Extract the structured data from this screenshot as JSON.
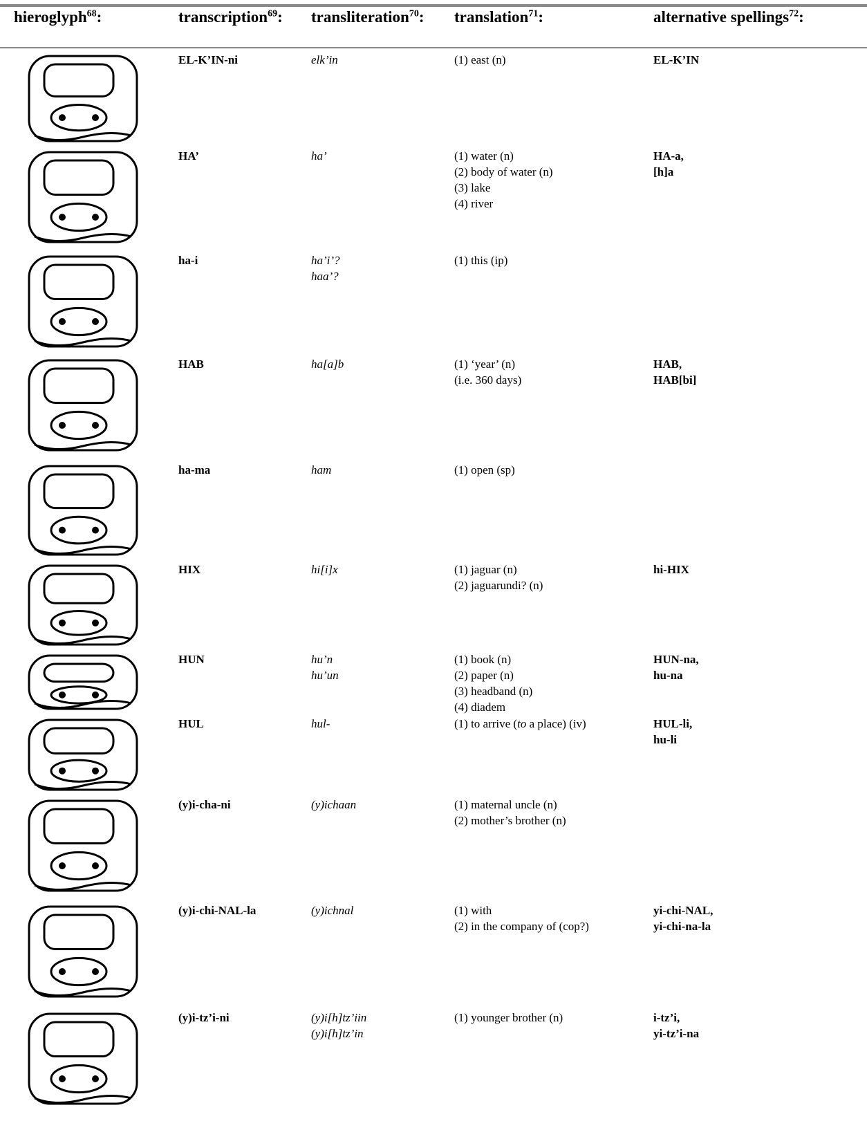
{
  "header": [
    {
      "label": "hieroglyph",
      "note": "68",
      "suffix": ":"
    },
    {
      "label": "transcription",
      "note": "69",
      "suffix": ":"
    },
    {
      "label": "transliteration",
      "note": "70",
      "suffix": ":"
    },
    {
      "label": "translation",
      "note": "71",
      "suffix": ":"
    },
    {
      "label": "alternative spellings",
      "note": "72",
      "suffix": ":"
    }
  ],
  "rows": [
    {
      "transcription": "EL-K’IN-ni",
      "transliteration": [
        "elk’in"
      ],
      "translation": [
        "(1) east (n)"
      ],
      "alternatives": [
        "EL-K’IN"
      ]
    },
    {
      "transcription": "HA’",
      "transliteration": [
        "ha’"
      ],
      "translation": [
        "(1) water (n)",
        "(2) body of water (n)",
        "(3) lake",
        "(4) river"
      ],
      "alternatives": [
        "HA-a,",
        "[h]a"
      ]
    },
    {
      "transcription": "ha-i",
      "transliteration": [
        "ha’i’?",
        "haa’?"
      ],
      "translation": [
        "(1) this (ip)"
      ],
      "alternatives": []
    },
    {
      "transcription": "HAB",
      "transliteration": [
        "ha[a]b"
      ],
      "translation": [
        "(1) ‘year’ (n)",
        "(i.e. 360 days)"
      ],
      "alternatives": [
        "HAB,",
        "HAB[bi]"
      ]
    },
    {
      "transcription": "ha-ma",
      "transliteration": [
        "ham"
      ],
      "translation": [
        "(1) open (sp)"
      ],
      "alternatives": []
    },
    {
      "transcription": "HIX",
      "transliteration": [
        "hi[i]x"
      ],
      "translation": [
        "(1) jaguar (n)",
        "(2) jaguarundi? (n)"
      ],
      "alternatives": [
        "hi-HIX"
      ]
    },
    {
      "transcription": "HUN",
      "transliteration": [
        "hu’n",
        "hu’un"
      ],
      "translation": [
        "(1) book (n)",
        "(2) paper (n)",
        "(3) headband (n)",
        "(4) diadem"
      ],
      "alternatives": [
        "HUN-na,",
        "hu-na"
      ]
    },
    {
      "transcription": "HUL",
      "transliteration": [
        "hul-"
      ],
      "translation": [
        {
          "parts": [
            "(1) to arrive (",
            "to",
            " a place) (iv)"
          ],
          "italic": [
            false,
            true,
            false
          ]
        }
      ],
      "alternatives": [
        "HUL-li,",
        "hu-li"
      ]
    },
    {
      "transcription": "(y)i-cha-ni",
      "transliteration": [
        "(y)ichaan"
      ],
      "translation": [
        "(1) maternal uncle (n)",
        "(2) mother’s brother (n)"
      ],
      "alternatives": []
    },
    {
      "transcription": "(y)i-chi-NAL-la",
      "transliteration": [
        "(y)ichnal"
      ],
      "translation": [
        "(1) with",
        "(2) in the company of (cop?)"
      ],
      "alternatives": [
        "yi-chi-NAL,",
        "yi-chi-na-la"
      ]
    },
    {
      "transcription": "(y)i-tz’i-ni",
      "transliteration": [
        "(y)i[h]tz’iin",
        "(y)i[h]tz’in"
      ],
      "translation": [
        "(1) younger brother (n)"
      ],
      "alternatives": [
        "i-tz’i,",
        "yi-tz’i-na"
      ]
    }
  ]
}
